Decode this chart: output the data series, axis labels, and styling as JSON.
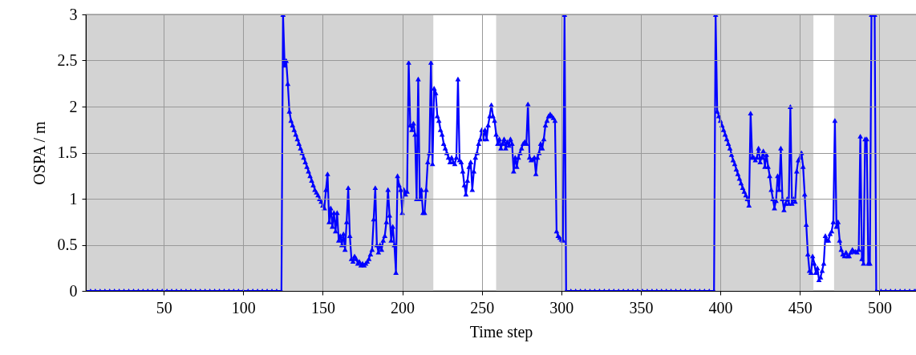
{
  "chart_data": {
    "type": "line",
    "xlabel": "Time step",
    "ylabel": "OSPA / m",
    "xlim": [
      1,
      523
    ],
    "xticks": [
      50,
      100,
      150,
      200,
      250,
      300,
      350,
      400,
      450,
      500
    ],
    "ylim": [
      0,
      3
    ],
    "yticks": [
      0,
      0.5,
      1,
      1.5,
      2,
      2.5,
      3
    ],
    "grid": true,
    "marker": "triangle",
    "line_style": "solid",
    "bands": [
      {
        "axis": "x",
        "from": 1,
        "to": 219.5,
        "color": "#d3d3d3"
      },
      {
        "axis": "x",
        "from": 259,
        "to": 458.5,
        "color": "#d3d3d3"
      },
      {
        "axis": "x",
        "from": 471.5,
        "to": 523,
        "color": "#d3d3d3"
      }
    ],
    "series": [
      {
        "color": "#0000ff",
        "x": [
          1,
          4,
          7,
          10,
          13,
          16,
          19,
          22,
          25,
          28,
          31,
          34,
          37,
          40,
          43,
          46,
          49,
          52,
          55,
          58,
          61,
          64,
          67,
          70,
          73,
          76,
          79,
          82,
          85,
          88,
          91,
          94,
          97,
          100,
          103,
          106,
          109,
          112,
          115,
          118,
          121,
          124,
          125,
          126,
          127,
          128,
          129,
          130,
          131,
          132,
          133,
          134,
          135,
          136,
          137,
          138,
          139,
          140,
          141,
          142,
          143,
          144,
          145,
          146,
          147,
          148,
          149,
          150,
          151,
          152,
          153,
          154,
          155,
          156,
          157,
          158,
          159,
          160,
          161,
          162,
          163,
          164,
          165,
          166,
          167,
          168,
          169,
          170,
          171,
          172,
          173,
          174,
          175,
          176,
          177,
          178,
          179,
          180,
          181,
          182,
          183,
          184,
          185,
          186,
          187,
          188,
          189,
          190,
          191,
          192,
          193,
          194,
          195,
          196,
          197,
          198,
          199,
          200,
          201,
          202,
          203,
          204,
          205,
          206,
          207,
          208,
          209,
          210,
          211,
          212,
          213,
          214,
          215,
          216,
          217,
          218,
          219,
          220,
          221,
          222,
          223,
          224,
          225,
          226,
          227,
          228,
          229,
          230,
          231,
          232,
          233,
          234,
          235,
          236,
          237,
          238,
          239,
          240,
          241,
          242,
          243,
          244,
          245,
          246,
          247,
          248,
          249,
          250,
          251,
          252,
          253,
          254,
          255,
          256,
          257,
          258,
          259,
          260,
          261,
          262,
          263,
          264,
          265,
          266,
          267,
          268,
          269,
          270,
          271,
          272,
          273,
          274,
          275,
          276,
          277,
          278,
          279,
          280,
          281,
          282,
          283,
          284,
          285,
          286,
          287,
          288,
          289,
          290,
          291,
          292,
          293,
          294,
          295,
          296,
          297,
          298,
          299,
          300,
          301,
          302,
          303,
          306,
          309,
          312,
          315,
          318,
          321,
          324,
          327,
          330,
          333,
          336,
          339,
          342,
          345,
          348,
          351,
          354,
          357,
          360,
          363,
          366,
          369,
          372,
          375,
          378,
          381,
          384,
          387,
          390,
          393,
          396,
          397,
          398,
          399,
          400,
          401,
          402,
          403,
          404,
          405,
          406,
          407,
          408,
          409,
          410,
          411,
          412,
          413,
          414,
          415,
          416,
          417,
          418,
          419,
          420,
          421,
          422,
          423,
          424,
          425,
          426,
          427,
          428,
          429,
          430,
          431,
          432,
          433,
          434,
          435,
          436,
          437,
          438,
          439,
          440,
          441,
          442,
          443,
          444,
          445,
          446,
          447,
          448,
          449,
          450,
          451,
          452,
          453,
          454,
          455,
          456,
          457,
          458,
          459,
          460,
          461,
          462,
          463,
          464,
          465,
          466,
          467,
          468,
          469,
          470,
          471,
          472,
          473,
          474,
          475,
          476,
          477,
          478,
          479,
          480,
          481,
          482,
          483,
          484,
          485,
          486,
          487,
          488,
          489,
          490,
          491,
          492,
          493,
          494,
          495,
          496,
          497,
          498,
          501,
          504,
          507,
          510,
          513,
          516,
          519,
          522,
          523
        ],
        "values": [
          0,
          0,
          0,
          0,
          0,
          0,
          0,
          0,
          0,
          0,
          0,
          0,
          0,
          0,
          0,
          0,
          0,
          0,
          0,
          0,
          0,
          0,
          0,
          0,
          0,
          0,
          0,
          0,
          0,
          0,
          0,
          0,
          0,
          0,
          0,
          0,
          0,
          0,
          0,
          0,
          0,
          0,
          3,
          2.45,
          2.5,
          2.25,
          1.95,
          1.85,
          1.8,
          1.75,
          1.7,
          1.65,
          1.6,
          1.55,
          1.5,
          1.45,
          1.4,
          1.35,
          1.3,
          1.25,
          1.2,
          1.15,
          1.1,
          1.07,
          1.04,
          1.0,
          0.97,
          0.93,
          0.9,
          1.1,
          1.27,
          0.75,
          0.9,
          0.7,
          0.85,
          0.65,
          0.85,
          0.55,
          0.6,
          0.5,
          0.62,
          0.45,
          0.75,
          1.12,
          0.6,
          0.35,
          0.32,
          0.38,
          0.35,
          0.3,
          0.32,
          0.28,
          0.3,
          0.28,
          0.3,
          0.32,
          0.35,
          0.4,
          0.45,
          0.78,
          1.12,
          0.5,
          0.42,
          0.5,
          0.45,
          0.55,
          0.6,
          0.75,
          1.1,
          0.82,
          0.55,
          0.7,
          0.5,
          0.2,
          1.25,
          1.15,
          1.1,
          0.85,
          1.1,
          1.05,
          1.08,
          2.48,
          1.8,
          1.75,
          1.82,
          1.7,
          1.0,
          2.3,
          1.0,
          1.1,
          0.85,
          0.85,
          1.1,
          1.4,
          1.5,
          2.48,
          1.38,
          2.2,
          2.15,
          1.9,
          1.85,
          1.75,
          1.7,
          1.6,
          1.55,
          1.5,
          1.45,
          1.4,
          1.45,
          1.4,
          1.38,
          1.45,
          2.3,
          1.42,
          1.4,
          1.3,
          1.15,
          1.05,
          1.2,
          1.35,
          1.4,
          1.1,
          1.3,
          1.45,
          1.5,
          1.6,
          1.65,
          1.75,
          1.65,
          1.75,
          1.65,
          1.8,
          1.9,
          2.02,
          1.9,
          1.85,
          1.7,
          1.6,
          1.65,
          1.55,
          1.6,
          1.65,
          1.55,
          1.62,
          1.58,
          1.65,
          1.6,
          1.3,
          1.45,
          1.35,
          1.45,
          1.5,
          1.55,
          1.6,
          1.62,
          1.6,
          2.03,
          1.45,
          1.42,
          1.43,
          1.45,
          1.27,
          1.45,
          1.5,
          1.6,
          1.55,
          1.65,
          1.8,
          1.85,
          1.9,
          1.92,
          1.9,
          1.88,
          1.85,
          0.65,
          0.6,
          0.58,
          0.56,
          0.55,
          3,
          0,
          0,
          0,
          0,
          0,
          0,
          0,
          0,
          0,
          0,
          0,
          0,
          0,
          0,
          0,
          0,
          0,
          0,
          0,
          0,
          0,
          0,
          0,
          0,
          0,
          0,
          0,
          0,
          0,
          0,
          0,
          0,
          3,
          1.95,
          1.9,
          1.85,
          1.8,
          1.75,
          1.7,
          1.65,
          1.6,
          1.55,
          1.48,
          1.42,
          1.38,
          1.32,
          1.27,
          1.22,
          1.17,
          1.12,
          1.08,
          1.04,
          1.0,
          0.93,
          1.93,
          1.45,
          1.45,
          1.42,
          1.45,
          1.55,
          1.4,
          1.45,
          1.52,
          1.35,
          1.48,
          1.35,
          1.25,
          1.1,
          1.0,
          0.9,
          0.98,
          1.25,
          1.1,
          1.55,
          1.0,
          0.88,
          0.95,
          1.0,
          0.95,
          2.0,
          0.95,
          1.0,
          0.97,
          1.3,
          1.42,
          1.45,
          1.5,
          1.35,
          1.05,
          0.72,
          0.4,
          0.22,
          0.2,
          0.38,
          0.3,
          0.2,
          0.25,
          0.12,
          0.15,
          0.22,
          0.3,
          0.6,
          0.55,
          0.55,
          0.62,
          0.65,
          0.75,
          1.85,
          0.7,
          0.75,
          0.55,
          0.45,
          0.4,
          0.38,
          0.42,
          0.38,
          0.38,
          0.42,
          0.45,
          0.43,
          0.43,
          0.42,
          0.45,
          1.68,
          0.35,
          0.3,
          1.65,
          1.65,
          0.3,
          0.3,
          3,
          3,
          3,
          0,
          0,
          0,
          0,
          0,
          0,
          0,
          0,
          0,
          0
        ]
      }
    ]
  }
}
